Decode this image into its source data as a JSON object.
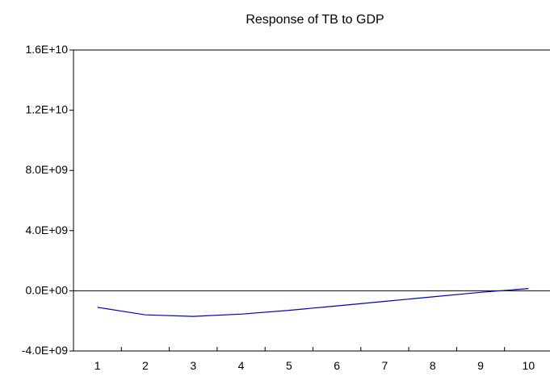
{
  "chart_data": {
    "type": "line",
    "title": "Response of TB to GDP",
    "xlabel": "",
    "ylabel": "",
    "x": [
      1,
      2,
      3,
      4,
      5,
      6,
      7,
      8,
      9,
      10
    ],
    "series": [
      {
        "values": [
          -1100000000,
          -1600000000,
          -1700000000,
          -1550000000,
          -1300000000,
          -1000000000,
          -700000000,
          -400000000,
          -100000000,
          150000000
        ],
        "color": "#0000cc"
      }
    ],
    "ylim": [
      -4000000000,
      16000000000
    ],
    "xlim": [
      0.5,
      10.5
    ],
    "yticks": [
      -4000000000,
      0,
      4000000000,
      8000000000,
      12000000000,
      16000000000
    ],
    "ytick_labels": [
      "-4.0E+09",
      "0.0E+00",
      "4.0E+09",
      "8.0E+09",
      "1.2E+10",
      "1.6E+10"
    ],
    "xtick_labels": [
      "1",
      "2",
      "3",
      "4",
      "5",
      "6",
      "7",
      "8",
      "9",
      "10"
    ],
    "zero_line": true,
    "grid": false,
    "legend": "none"
  }
}
